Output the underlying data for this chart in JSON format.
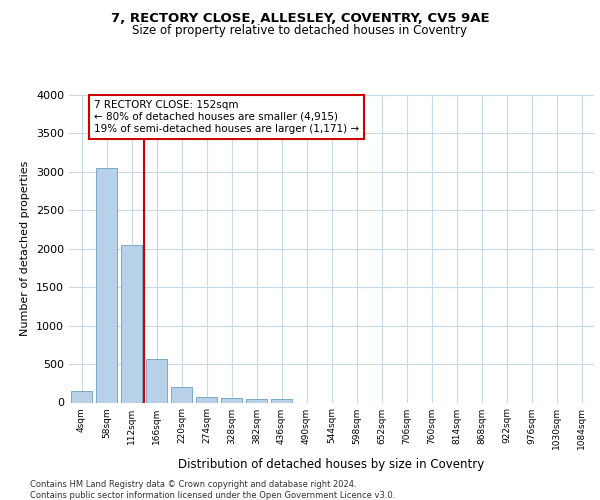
{
  "title": "7, RECTORY CLOSE, ALLESLEY, COVENTRY, CV5 9AE",
  "subtitle": "Size of property relative to detached houses in Coventry",
  "xlabel": "Distribution of detached houses by size in Coventry",
  "ylabel": "Number of detached properties",
  "categories": [
    "4sqm",
    "58sqm",
    "112sqm",
    "166sqm",
    "220sqm",
    "274sqm",
    "328sqm",
    "382sqm",
    "436sqm",
    "490sqm",
    "544sqm",
    "598sqm",
    "652sqm",
    "706sqm",
    "760sqm",
    "814sqm",
    "868sqm",
    "922sqm",
    "976sqm",
    "1030sqm",
    "1084sqm"
  ],
  "values": [
    150,
    3050,
    2050,
    570,
    200,
    75,
    60,
    50,
    40,
    0,
    0,
    0,
    0,
    0,
    0,
    0,
    0,
    0,
    0,
    0,
    0
  ],
  "bar_color": "#b8d0e8",
  "bar_edge_color": "#7aaac8",
  "property_line_color": "#cc0000",
  "property_line_x": 2.5,
  "annotation_line1": "7 RECTORY CLOSE: 152sqm",
  "annotation_line2": "← 80% of detached houses are smaller (4,915)",
  "annotation_line3": "19% of semi-detached houses are larger (1,171) →",
  "annotation_box_color": "#cc0000",
  "ylim": [
    0,
    4000
  ],
  "yticks": [
    0,
    500,
    1000,
    1500,
    2000,
    2500,
    3000,
    3500,
    4000
  ],
  "background_color": "#ffffff",
  "grid_color": "#c8d8e8",
  "footer_line1": "Contains HM Land Registry data © Crown copyright and database right 2024.",
  "footer_line2": "Contains public sector information licensed under the Open Government Licence v3.0."
}
